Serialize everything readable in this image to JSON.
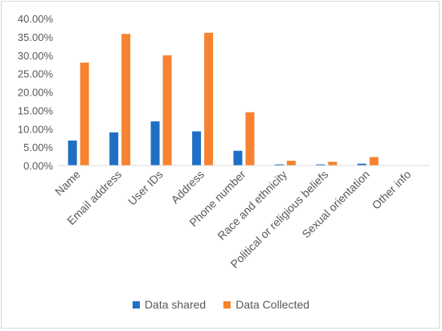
{
  "chart_data": {
    "type": "bar",
    "categories": [
      "Name",
      "Email address",
      "User IDs",
      "Address",
      "Phone number",
      "Race and ethnicity",
      "Political or religious beliefs",
      "Sexual orientation",
      "Other info"
    ],
    "series": [
      {
        "name": "Data shared",
        "color": "#1f6fc5",
        "values": [
          6.8,
          9.0,
          12.0,
          9.3,
          4.0,
          0.3,
          0.3,
          0.5,
          0.0
        ]
      },
      {
        "name": "Data Collected",
        "color": "#f78230",
        "values": [
          28.0,
          35.8,
          30.0,
          36.1,
          14.5,
          1.3,
          1.0,
          2.3,
          0.0
        ]
      }
    ],
    "ylim": [
      0,
      40
    ],
    "yticks": [
      "0.00%",
      "5.00%",
      "10.00%",
      "15.00%",
      "20.00%",
      "25.00%",
      "30.00%",
      "35.00%",
      "40.00%"
    ],
    "grid": false,
    "legend_position": "bottom",
    "title": "",
    "xlabel": "",
    "ylabel": ""
  }
}
